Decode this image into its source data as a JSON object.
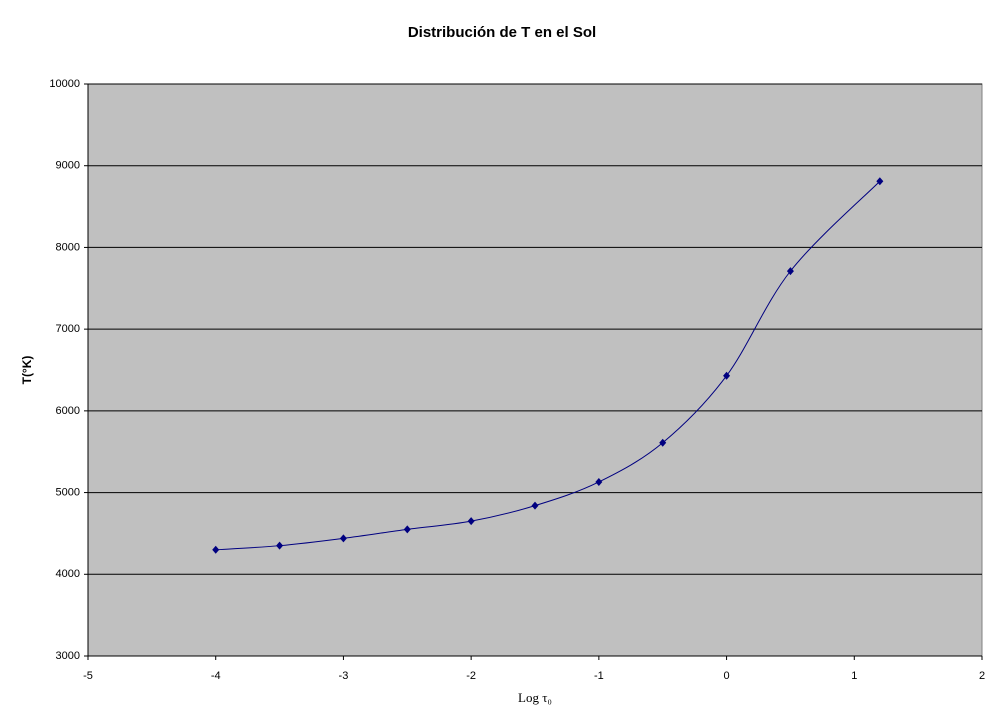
{
  "chart_data": {
    "type": "line",
    "title": "Distribución de T en el Sol",
    "x_label": "Log τ₀",
    "y_label": "T(°K)",
    "x": [
      -4,
      -3.5,
      -3,
      -2.5,
      -2,
      -1.5,
      -1,
      -0.5,
      0,
      0.5,
      1.2
    ],
    "series": [
      {
        "name": "T",
        "color": "#000080",
        "values": [
          4300,
          4350,
          4440,
          4550,
          4650,
          4840,
          5130,
          5610,
          6430,
          7710,
          8810
        ]
      }
    ],
    "xlim": [
      -5,
      2
    ],
    "xticks": [
      -5,
      -4,
      -3,
      -2,
      -1,
      0,
      1,
      2
    ],
    "ylim": [
      3000,
      10000
    ],
    "yticks": [
      3000,
      4000,
      5000,
      6000,
      7000,
      8000,
      9000,
      10000
    ],
    "grid": true,
    "smooth": true
  }
}
